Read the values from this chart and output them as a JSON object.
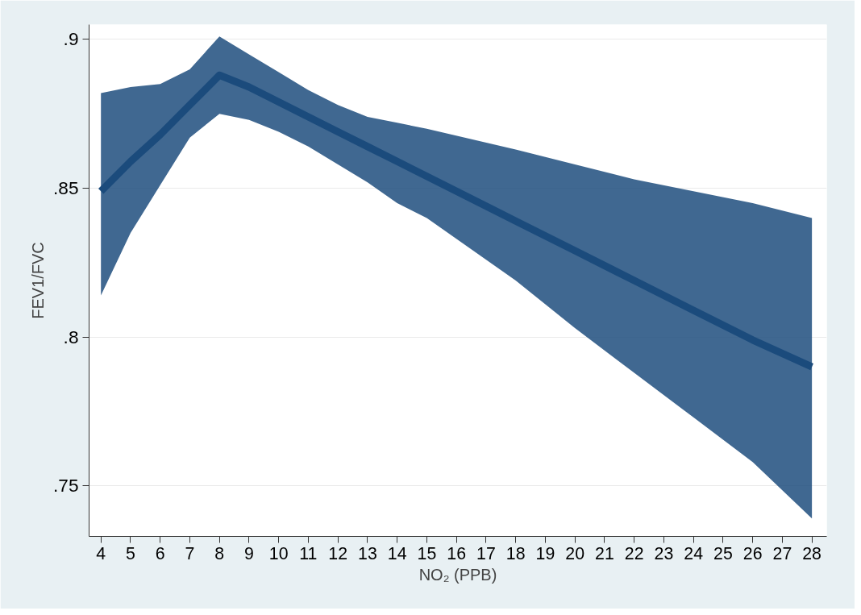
{
  "chart_data": {
    "type": "line",
    "xlabel": "NO₂ (PPB)",
    "ylabel": "FEV1/FVC",
    "xlim": [
      3.6,
      28.5
    ],
    "ylim": [
      0.733,
      0.905
    ],
    "xticks": [
      4,
      5,
      6,
      7,
      8,
      9,
      10,
      11,
      12,
      13,
      14,
      15,
      16,
      17,
      18,
      19,
      20,
      21,
      22,
      23,
      24,
      25,
      26,
      27,
      28
    ],
    "yticks": [
      {
        "value": 0.75,
        "label": ".75"
      },
      {
        "value": 0.8,
        "label": ".8"
      },
      {
        "value": 0.85,
        "label": ".85"
      },
      {
        "value": 0.9,
        "label": ".9"
      }
    ],
    "grid": "y",
    "marker": "none",
    "line_style": "solid",
    "series": [
      {
        "color": "#1b4b7c",
        "x": [
          4,
          5,
          6,
          7,
          8,
          9,
          10,
          11,
          12,
          13,
          14,
          15,
          18,
          20,
          22,
          24,
          26,
          28
        ],
        "values": [
          0.849,
          0.859,
          0.868,
          0.878,
          0.888,
          0.884,
          0.879,
          0.874,
          0.869,
          0.864,
          0.859,
          0.854,
          0.839,
          0.829,
          0.819,
          0.809,
          0.799,
          0.79
        ],
        "lower": [
          0.814,
          0.835,
          0.851,
          0.867,
          0.875,
          0.873,
          0.869,
          0.864,
          0.858,
          0.852,
          0.845,
          0.84,
          0.819,
          0.803,
          0.788,
          0.773,
          0.758,
          0.739
        ],
        "upper": [
          0.882,
          0.884,
          0.885,
          0.89,
          0.901,
          0.895,
          0.889,
          0.883,
          0.878,
          0.874,
          0.872,
          0.87,
          0.863,
          0.858,
          0.853,
          0.849,
          0.845,
          0.84
        ]
      }
    ]
  }
}
